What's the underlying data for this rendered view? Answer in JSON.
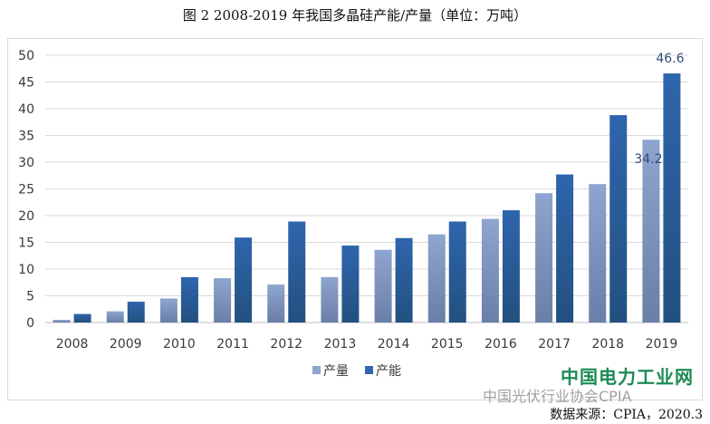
{
  "title": "图 2 2008-2019 年我国多晶硅产能/产量（单位：万吨）",
  "source": "数据来源：CPIA，2020.3",
  "watermark": {
    "main": "中国电力工业网",
    "sub": "中国光伏行业协会CPIA",
    "url": "www.cepow.com"
  },
  "colors": {
    "output": "#8ea5cf",
    "output_dark": "#6a7fa8",
    "capacity": "#2f65ad",
    "capacity_dark": "#22507f"
  },
  "chart_data": {
    "type": "bar",
    "title": "图 2 2008-2019 年我国多晶硅产能/产量（单位：万吨）",
    "categories": [
      "2008",
      "2009",
      "2010",
      "2011",
      "2012",
      "2013",
      "2014",
      "2015",
      "2016",
      "2017",
      "2018",
      "2019"
    ],
    "series": [
      {
        "name": "产量",
        "values": [
          0.5,
          2.1,
          4.5,
          8.3,
          7.1,
          8.5,
          13.6,
          16.5,
          19.4,
          24.2,
          25.9,
          34.2
        ]
      },
      {
        "name": "产能",
        "values": [
          1.6,
          3.9,
          8.5,
          15.9,
          18.9,
          14.4,
          15.8,
          18.9,
          21.0,
          27.7,
          38.8,
          46.6
        ]
      }
    ],
    "data_labels": [
      {
        "series": "产量",
        "category": "2019",
        "text": "34.2"
      },
      {
        "series": "产能",
        "category": "2019",
        "text": "46.6"
      }
    ],
    "yticks": [
      "0",
      "5",
      "10",
      "15",
      "20",
      "25",
      "30",
      "35",
      "40",
      "45",
      "50"
    ],
    "ylim": [
      0,
      50
    ],
    "grid": true,
    "legend": "bottom"
  }
}
